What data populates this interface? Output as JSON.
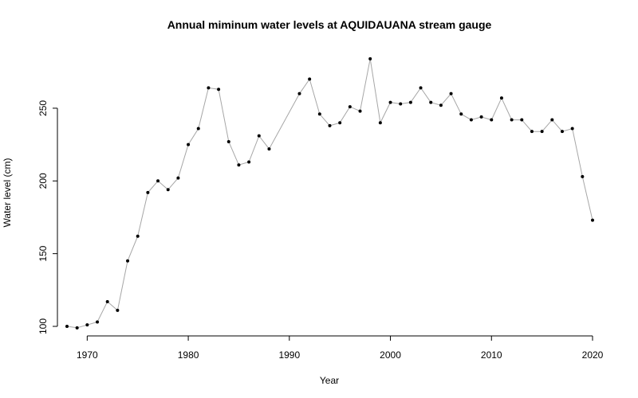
{
  "chart_data": {
    "type": "line",
    "title": "Annual miminum water levels at AQUIDAUANA stream gauge",
    "xlabel": "Year",
    "ylabel": "Water level (cm)",
    "xlim": [
      1968,
      2020
    ],
    "ylim": [
      100,
      285
    ],
    "xticks": [
      1970,
      1980,
      1990,
      2000,
      2010,
      2020
    ],
    "yticks": [
      100,
      150,
      200,
      250
    ],
    "series_color": "#a6a6a6",
    "point_color": "#000000",
    "x": [
      1968,
      1969,
      1970,
      1971,
      1972,
      1973,
      1974,
      1975,
      1976,
      1977,
      1978,
      1979,
      1980,
      1981,
      1982,
      1983,
      1984,
      1985,
      1986,
      1987,
      1988,
      1991,
      1992,
      1993,
      1994,
      1995,
      1996,
      1997,
      1998,
      1999,
      2000,
      2001,
      2002,
      2003,
      2004,
      2005,
      2006,
      2007,
      2008,
      2009,
      2010,
      2011,
      2012,
      2013,
      2014,
      2015,
      2016,
      2017,
      2018,
      2019,
      2020
    ],
    "y": [
      100,
      99,
      101,
      103,
      117,
      111,
      145,
      162,
      192,
      200,
      194,
      202,
      225,
      236,
      264,
      263,
      227,
      211,
      213,
      231,
      222,
      260,
      270,
      246,
      238,
      240,
      251,
      248,
      284,
      240,
      254,
      253,
      254,
      264,
      254,
      252,
      260,
      246,
      242,
      244,
      242,
      257,
      242,
      242,
      234,
      234,
      242,
      234,
      236,
      203,
      173
    ]
  }
}
